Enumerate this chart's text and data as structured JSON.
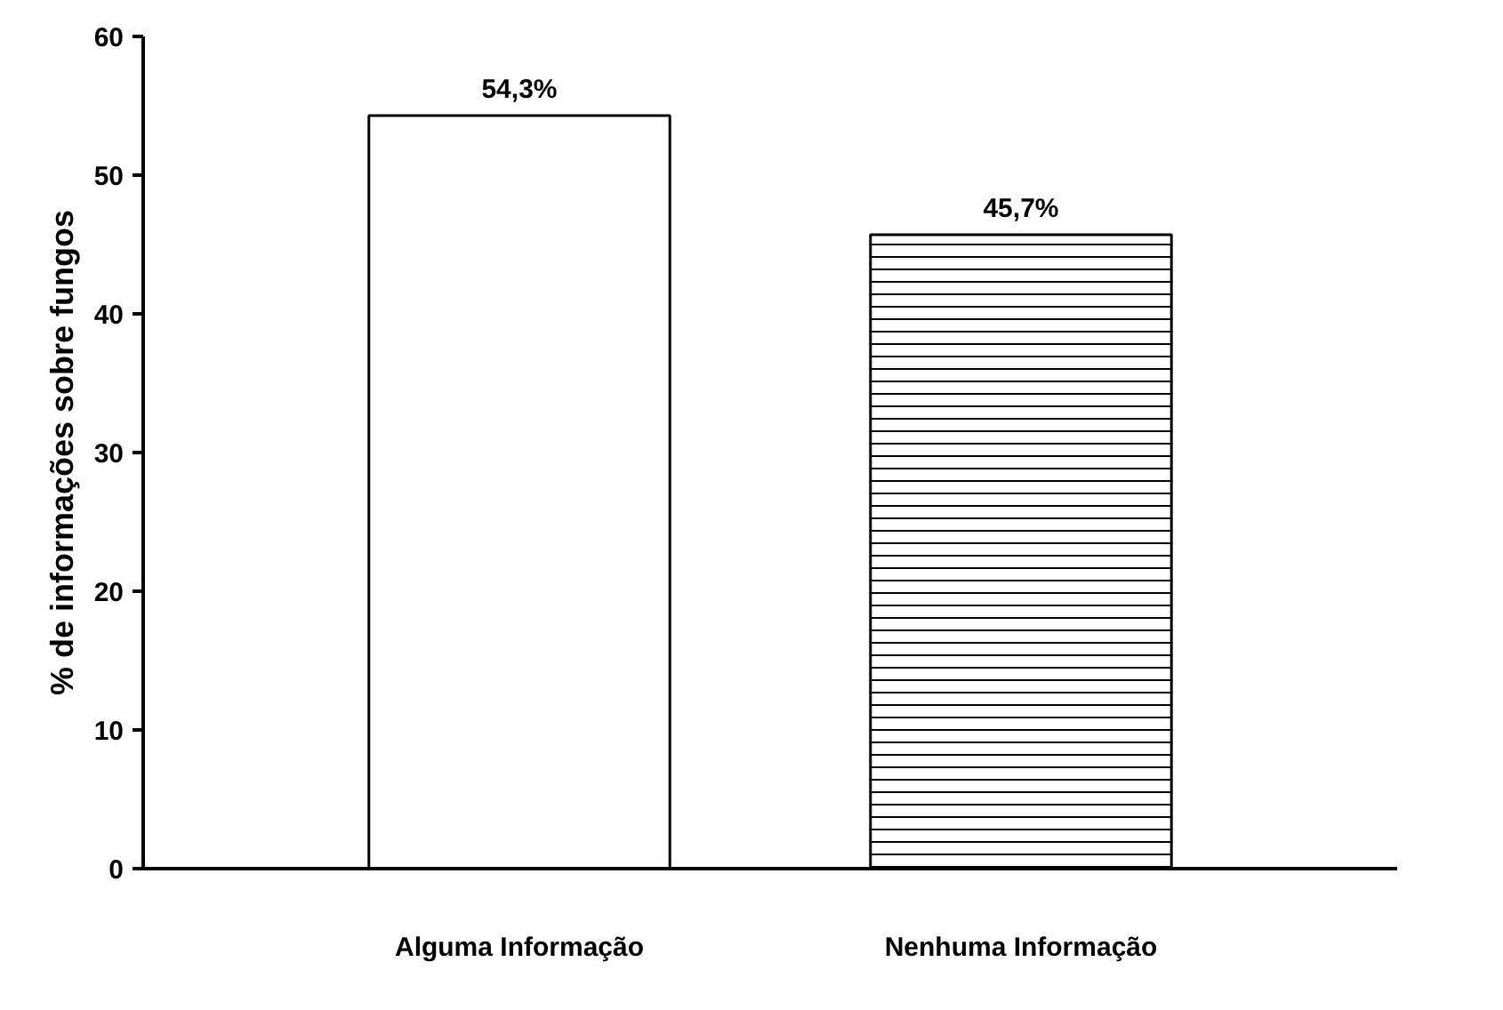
{
  "chart_data": {
    "type": "bar",
    "ylabel": "% de informações sobre fungos",
    "categories": [
      "Alguma Informação",
      "Nenhuma Informação"
    ],
    "values": [
      54.3,
      45.7
    ],
    "value_labels": [
      "54,3%",
      "45,7%"
    ],
    "colors": [
      "#ffffff",
      "#ffffff"
    ],
    "ylim": [
      0,
      60
    ],
    "yticks": [
      0,
      10,
      20,
      30,
      40,
      50,
      60
    ],
    "grid": false
  }
}
